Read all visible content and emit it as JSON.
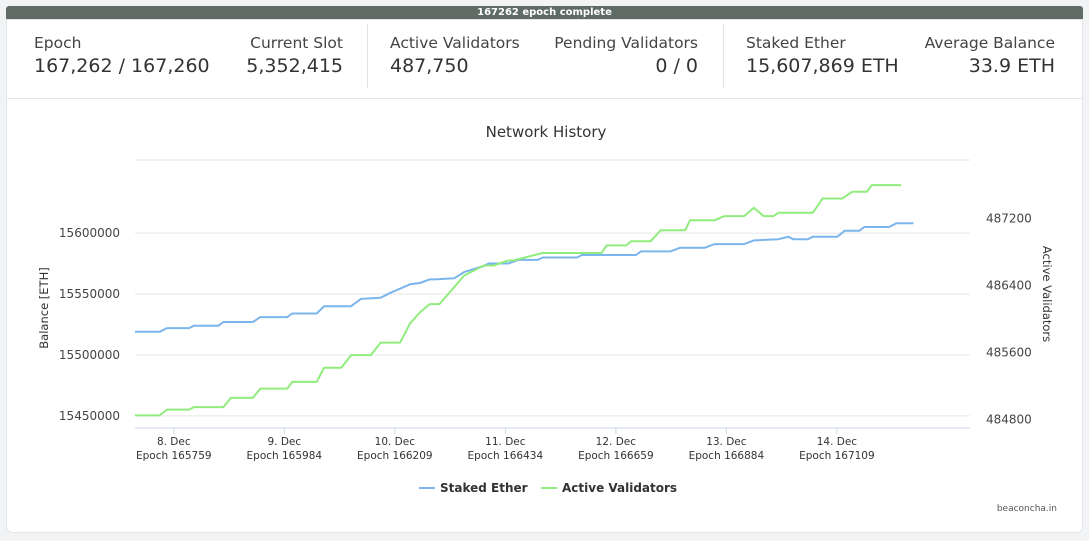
{
  "banner": {
    "text": "167262 epoch complete"
  },
  "stats": {
    "epoch": {
      "label": "Epoch",
      "value": "167,262 / 167,260"
    },
    "current_slot": {
      "label": "Current Slot",
      "value": "5,352,415"
    },
    "active_validators": {
      "label": "Active Validators",
      "value": "487,750"
    },
    "pending_validators": {
      "label": "Pending Validators",
      "value": "0 / 0"
    },
    "staked_ether": {
      "label": "Staked Ether",
      "value": "15,607,869 ETH"
    },
    "average_balance": {
      "label": "Average Balance",
      "value": "33.9 ETH"
    }
  },
  "colors": {
    "staked": "#7cb5ec",
    "validators": "#90ed7d",
    "banner": "#5f6b65"
  },
  "footer": {
    "credit": "beaconcha.in"
  },
  "chart_data": {
    "type": "line",
    "title": "Network History",
    "ylabel": "Balance [ETH]",
    "y2label": "Active Validators",
    "ylim": [
      15440000,
      15660000
    ],
    "y2lim": [
      484700,
      487900
    ],
    "yticks": [
      15450000,
      15500000,
      15550000,
      15600000
    ],
    "y2ticks": [
      484800,
      485600,
      486400,
      487200
    ],
    "grid": true,
    "legend_position": "bottom",
    "xlim": [
      165680,
      167380
    ],
    "x_ticks": [
      {
        "x": 165759,
        "day": "8. Dec",
        "epoch": "Epoch 165759"
      },
      {
        "x": 165984,
        "day": "9. Dec",
        "epoch": "Epoch 165984"
      },
      {
        "x": 166209,
        "day": "10. Dec",
        "epoch": "Epoch 166209"
      },
      {
        "x": 166434,
        "day": "11. Dec",
        "epoch": "Epoch 166434"
      },
      {
        "x": 166659,
        "day": "12. Dec",
        "epoch": "Epoch 166659"
      },
      {
        "x": 166884,
        "day": "13. Dec",
        "epoch": "Epoch 166884"
      },
      {
        "x": 167109,
        "day": "14. Dec",
        "epoch": "Epoch 167109"
      }
    ],
    "series": [
      {
        "name": "Staked Ether",
        "axis": "left",
        "x": [
          165680,
          165730,
          165745,
          165790,
          165800,
          165850,
          165860,
          165920,
          165935,
          165990,
          166000,
          166050,
          166065,
          166120,
          166140,
          166180,
          166200,
          166240,
          166260,
          166280,
          166290,
          166330,
          166350,
          166390,
          166400,
          166440,
          166460,
          166500,
          166510,
          166580,
          166590,
          166700,
          166710,
          166770,
          166790,
          166840,
          166860,
          166920,
          166940,
          166990,
          167000,
          167010,
          167020,
          167050,
          167060,
          167110,
          167125,
          167155,
          167165,
          167215,
          167230,
          167265
        ],
        "y": [
          15519000,
          15519000,
          15522000,
          15522000,
          15524000,
          15524000,
          15527000,
          15527000,
          15531000,
          15531000,
          15534000,
          15534000,
          15540000,
          15540000,
          15546000,
          15547000,
          15551000,
          15558000,
          15559000,
          15562000,
          15562000,
          15563000,
          15568000,
          15573000,
          15575000,
          15575000,
          15578000,
          15578000,
          15580000,
          15580000,
          15582000,
          15582000,
          15585000,
          15585000,
          15588000,
          15588000,
          15591000,
          15591000,
          15594000,
          15595000,
          15596000,
          15597000,
          15595000,
          15595000,
          15597000,
          15597000,
          15602000,
          15602000,
          15605000,
          15605000,
          15608000,
          15608000
        ]
      },
      {
        "name": "Active Validators",
        "axis": "right",
        "x": [
          165680,
          165730,
          165745,
          165790,
          165800,
          165860,
          165875,
          165920,
          165935,
          165990,
          166000,
          166050,
          166065,
          166100,
          166120,
          166160,
          166180,
          166220,
          166240,
          166260,
          166280,
          166300,
          166350,
          166390,
          166410,
          166440,
          166450,
          166510,
          166520,
          166600,
          166610,
          166630,
          166640,
          166680,
          166690,
          166730,
          166750,
          166800,
          166810,
          166860,
          166880,
          166920,
          166940,
          166960,
          166980,
          166990,
          167010,
          167060,
          167080,
          167120,
          167140,
          167170,
          167180,
          167240
        ],
        "y": [
          484850,
          484850,
          484920,
          484920,
          484950,
          484950,
          485060,
          485060,
          485170,
          485170,
          485250,
          485250,
          485420,
          485420,
          485570,
          485570,
          485720,
          485720,
          485950,
          486080,
          486180,
          486180,
          486520,
          486640,
          486640,
          486700,
          486700,
          486790,
          486790,
          486790,
          486790,
          486790,
          486880,
          486880,
          486930,
          486930,
          487060,
          487060,
          487180,
          487180,
          487230,
          487230,
          487330,
          487230,
          487230,
          487270,
          487270,
          487270,
          487440,
          487440,
          487520,
          487520,
          487600,
          487600
        ]
      }
    ]
  }
}
